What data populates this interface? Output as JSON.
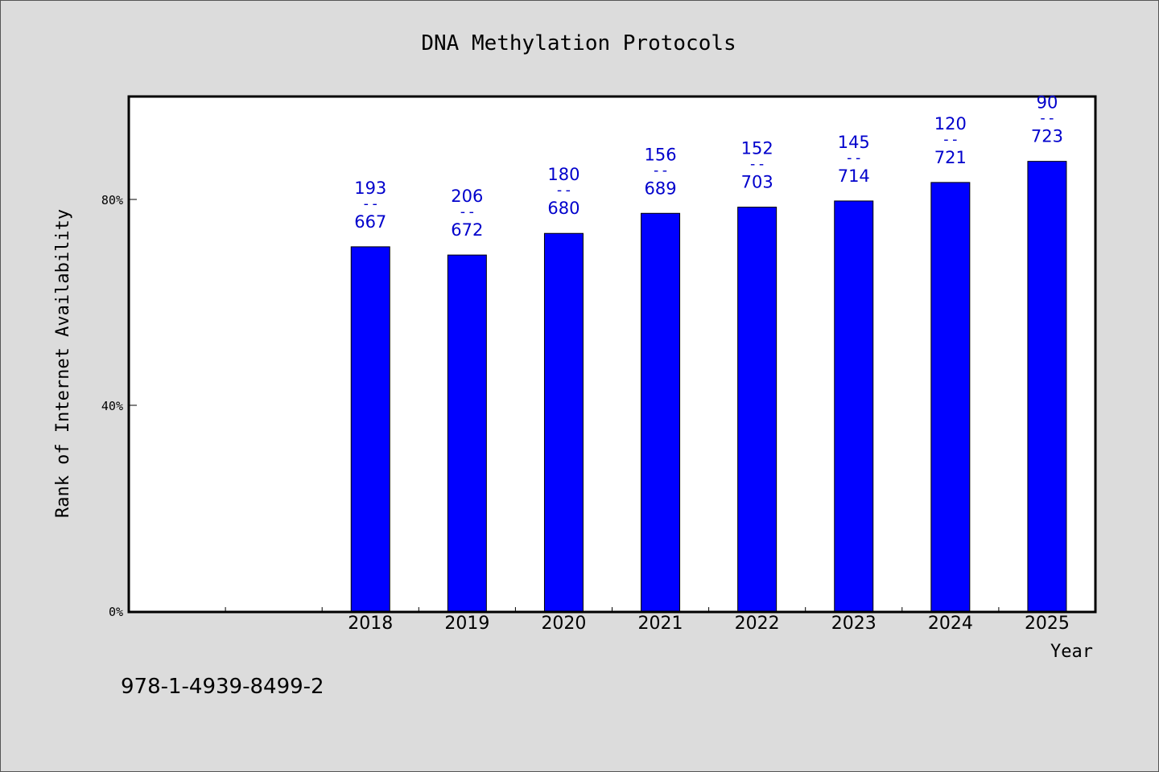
{
  "chart_data": {
    "type": "bar",
    "title": "DNA Methylation Protocols",
    "xlabel": "Year",
    "ylabel": "Rank of Internet Availability",
    "categories": [
      "",
      "",
      "2018",
      "2019",
      "2020",
      "2021",
      "2022",
      "2023",
      "2024",
      "2025"
    ],
    "values": [
      null,
      null,
      70.8,
      69.2,
      73.4,
      77.3,
      78.5,
      79.7,
      83.3,
      87.4
    ],
    "labels_top": [
      "",
      "",
      "193",
      "206",
      "180",
      "156",
      "152",
      "145",
      "120",
      "90"
    ],
    "labels_bottom": [
      "",
      "",
      "667",
      "672",
      "680",
      "689",
      "703",
      "714",
      "721",
      "723"
    ],
    "label_separator": "--",
    "y_ticks": [
      0,
      40,
      80
    ],
    "y_tick_labels": [
      "0%",
      "40%",
      "80%"
    ],
    "ylim": [
      0,
      100
    ],
    "grid": false,
    "bar_color": "#0000ff",
    "label_color": "#0000cc"
  },
  "footer": {
    "isbn": "978-1-4939-8499-2"
  }
}
